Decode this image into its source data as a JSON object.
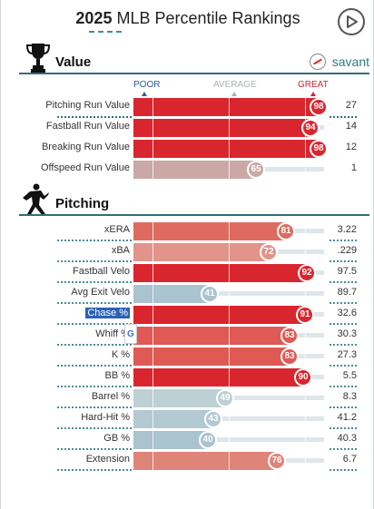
{
  "header": {
    "year": "2025",
    "title": "MLB Percentile Rankings"
  },
  "value_section": {
    "title": "Value",
    "brand": "savant",
    "scale": {
      "poor": "POOR",
      "average": "AVERAGE",
      "great": "GREAT"
    },
    "rows": [
      {
        "label": "Pitching Run Value",
        "percentile": 98,
        "value": "27",
        "color": "#d9262e"
      },
      {
        "label": "Fastball Run Value",
        "percentile": 94,
        "value": "14",
        "color": "#d9262e"
      },
      {
        "label": "Breaking Run Value",
        "percentile": 98,
        "value": "12",
        "color": "#d9262e"
      },
      {
        "label": "Offspeed Run Value",
        "percentile": 65,
        "value": "1",
        "color": "#c9a8a5"
      }
    ]
  },
  "pitching_section": {
    "title": "Pitching",
    "rows": [
      {
        "label": "xERA",
        "percentile": 81,
        "value": "3.22",
        "color": "#df6b60"
      },
      {
        "label": "xBA",
        "percentile": 72,
        "value": ".229",
        "color": "#e0948a"
      },
      {
        "label": "Fastball Velo",
        "percentile": 92,
        "value": "97.5",
        "color": "#d9262e"
      },
      {
        "label": "Avg Exit Velo",
        "percentile": 41,
        "value": "89.7",
        "color": "#a9c3cf"
      },
      {
        "label": "Chase %",
        "percentile": 91,
        "value": "32.6",
        "color": "#d9262e",
        "highlighted": true
      },
      {
        "label": "Whiff %",
        "percentile": 83,
        "value": "30.3",
        "color": "#df5a54"
      },
      {
        "label": "K %",
        "percentile": 83,
        "value": "27.3",
        "color": "#df5a54"
      },
      {
        "label": "BB %",
        "percentile": 90,
        "value": "5.5",
        "color": "#d9262e"
      },
      {
        "label": "Barrel %",
        "percentile": 49,
        "value": "8.3",
        "color": "#bdd0d4"
      },
      {
        "label": "Hard-Hit %",
        "percentile": 43,
        "value": "41.2",
        "color": "#b2c9d2"
      },
      {
        "label": "GB %",
        "percentile": 40,
        "value": "40.3",
        "color": "#a9c3cf"
      },
      {
        "label": "Extension",
        "percentile": 76,
        "value": "6.7",
        "color": "#df8478"
      }
    ]
  },
  "icons": {
    "trophy": "trophy-icon",
    "pitcher": "pitcher-icon",
    "play": "play-icon",
    "savant_logo": "savant-logo-icon",
    "translate": "google-translate-icon"
  }
}
